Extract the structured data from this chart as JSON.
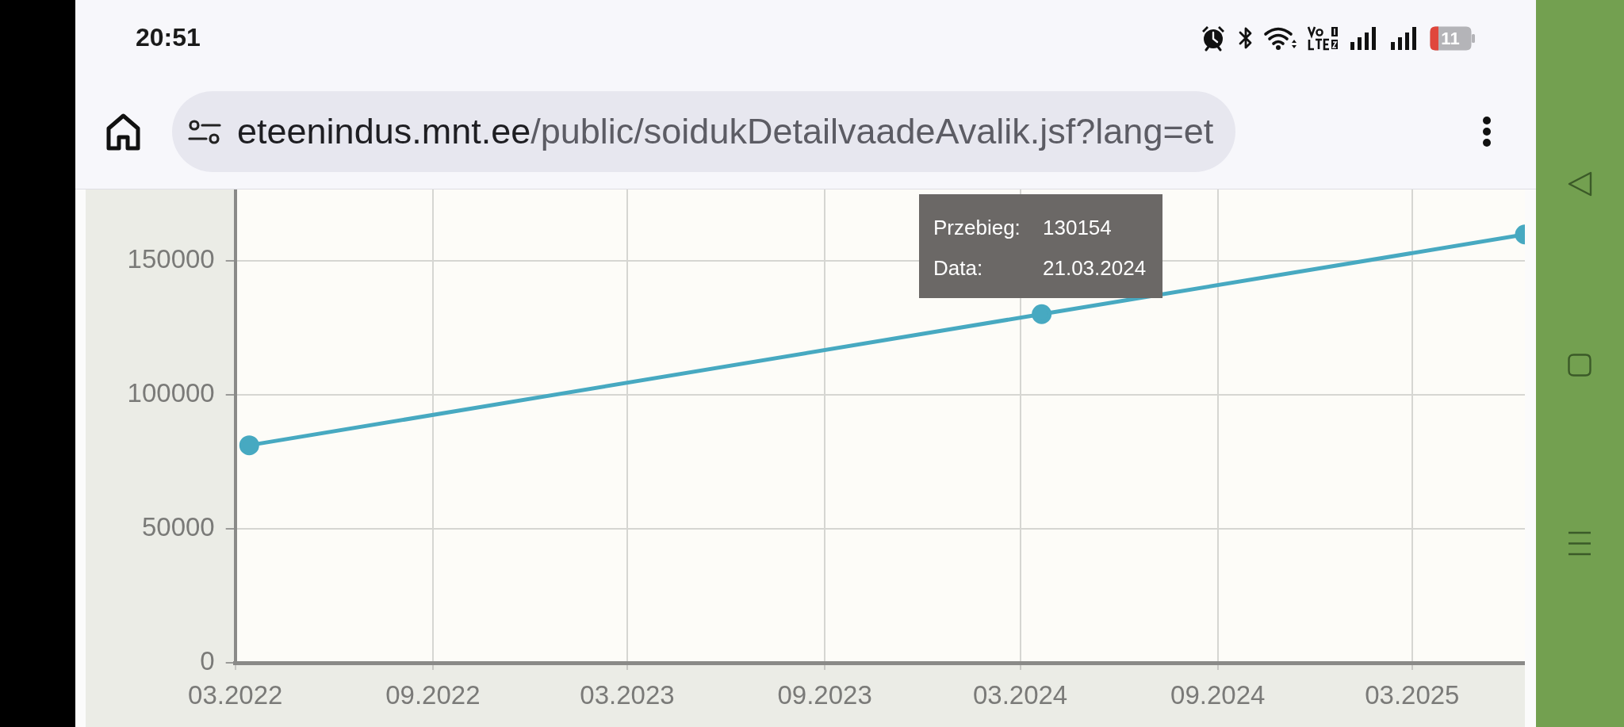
{
  "chart_data": {
    "type": "line",
    "x": [
      "2022-03-14",
      "2024-03-21",
      "2025-06-14"
    ],
    "series": [
      {
        "color": "#47a9c1",
        "values": [
          81200,
          130154,
          159900
        ]
      }
    ],
    "xlim": [
      "2022-03-01",
      "2025-06-14"
    ],
    "xticks": [
      {
        "value": "2022-03",
        "label": "03.2022"
      },
      {
        "value": "2022-09",
        "label": "09.2022"
      },
      {
        "value": "2023-03",
        "label": "03.2023"
      },
      {
        "value": "2023-09",
        "label": "09.2023"
      },
      {
        "value": "2024-03",
        "label": "03.2024"
      },
      {
        "value": "2024-09",
        "label": "09.2024"
      },
      {
        "value": "2025-03",
        "label": "03.2025"
      }
    ],
    "ylim": [
      0,
      176700
    ],
    "yticks": [
      0,
      50000,
      100000,
      150000
    ],
    "grid": true,
    "marker": "circle",
    "line_style": "solid",
    "annotations": [
      "20:51",
      "11",
      "eteenindus.mnt.ee/public/soidukDetailvaadeAvalik.jsf?lang=et",
      "Przebieg:",
      "130154",
      "Data:",
      "21.03.2024"
    ]
  }
}
